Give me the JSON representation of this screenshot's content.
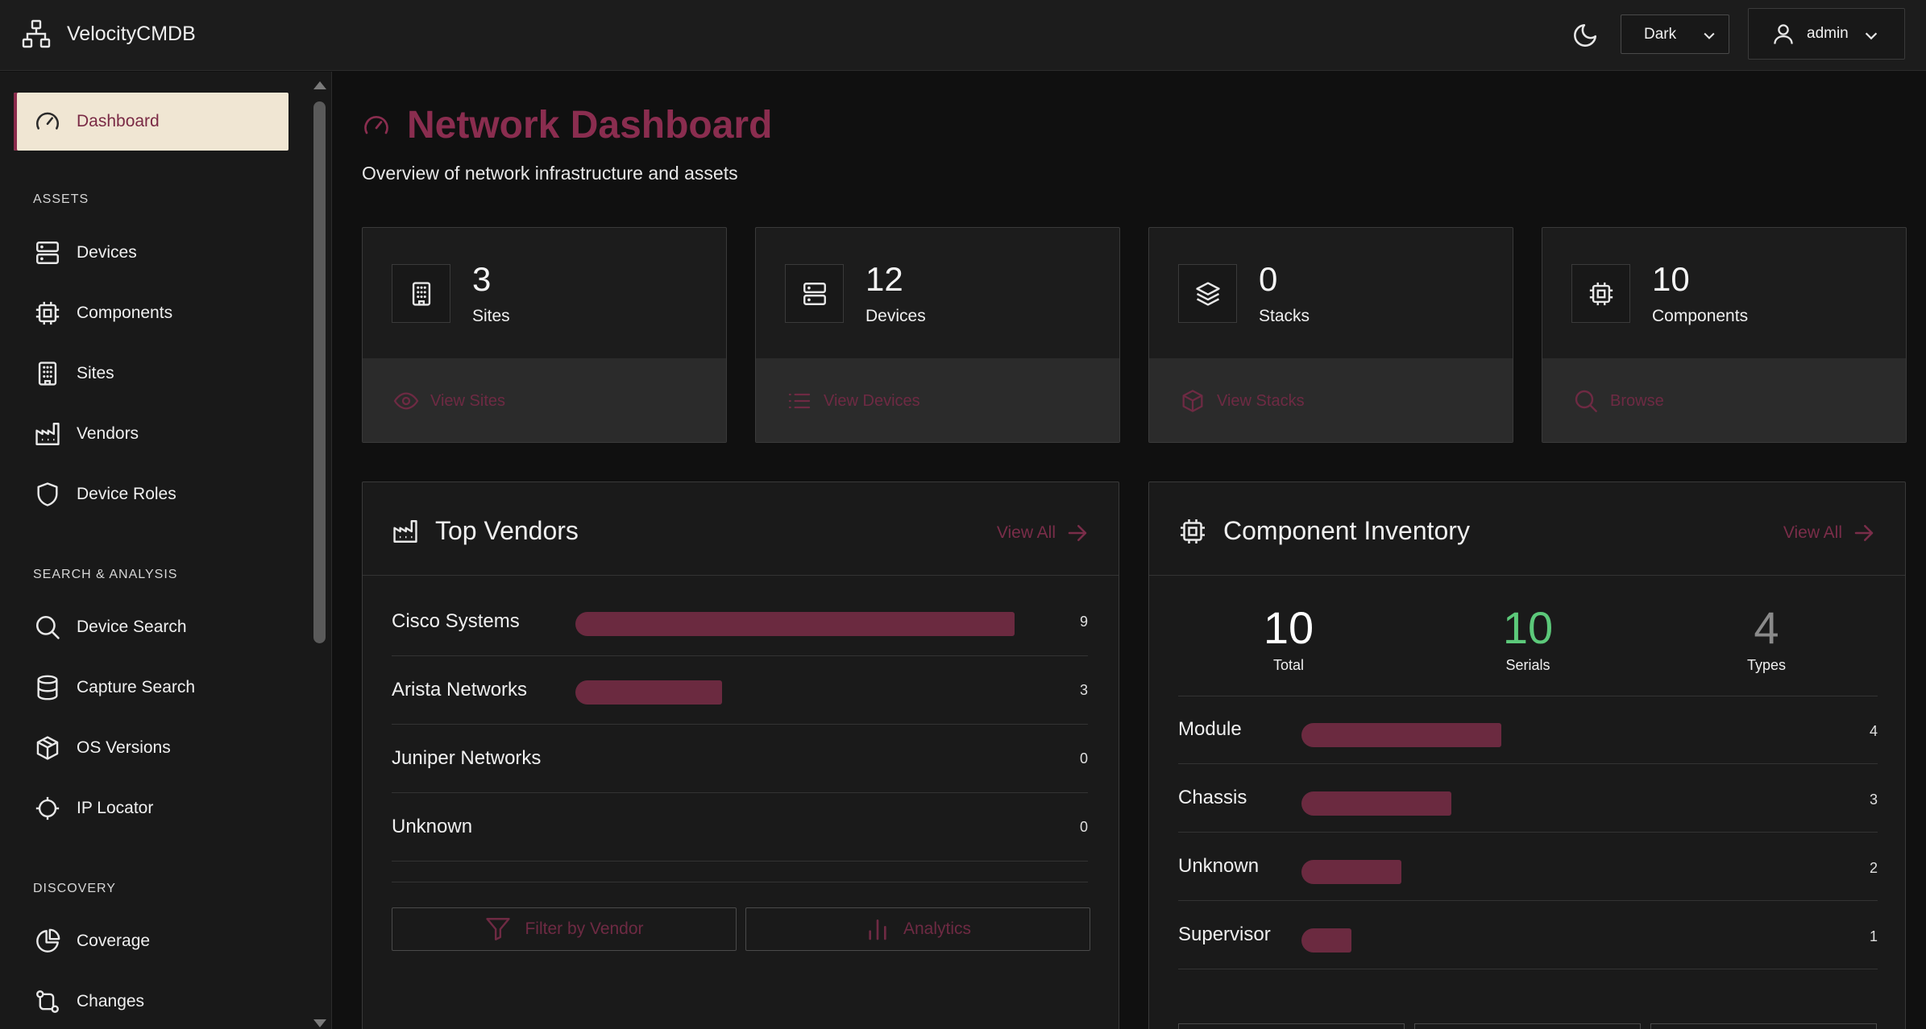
{
  "app": {
    "title": "VelocityCMDB"
  },
  "topbar": {
    "theme_value": "Dark",
    "theme_options": [
      "Dark"
    ],
    "username": "admin"
  },
  "sidebar": {
    "active": {
      "label": "Dashboard",
      "icon": "gauge-icon"
    },
    "sections": [
      {
        "label": "ASSETS",
        "items": [
          {
            "label": "Devices",
            "icon": "server-icon"
          },
          {
            "label": "Components",
            "icon": "cpu-icon"
          },
          {
            "label": "Sites",
            "icon": "building-icon"
          },
          {
            "label": "Vendors",
            "icon": "factory-icon"
          },
          {
            "label": "Device Roles",
            "icon": "shield-icon"
          }
        ]
      },
      {
        "label": "SEARCH & ANALYSIS",
        "items": [
          {
            "label": "Device Search",
            "icon": "search-icon"
          },
          {
            "label": "Capture Search",
            "icon": "database-icon"
          },
          {
            "label": "OS Versions",
            "icon": "box-icon"
          },
          {
            "label": "IP Locator",
            "icon": "crosshair-icon"
          }
        ]
      },
      {
        "label": "DISCOVERY",
        "items": [
          {
            "label": "Coverage",
            "icon": "pie-chart-icon"
          },
          {
            "label": "Changes",
            "icon": "git-compare-icon"
          }
        ]
      }
    ]
  },
  "page": {
    "title": "Network Dashboard",
    "subtitle": "Overview of network infrastructure and assets"
  },
  "stats": [
    {
      "value": "3",
      "label": "Sites",
      "link": "View Sites",
      "icon": "building-icon",
      "link_icon": "eye-icon"
    },
    {
      "value": "12",
      "label": "Devices",
      "link": "View Devices",
      "icon": "server-icon",
      "link_icon": "list-icon"
    },
    {
      "value": "0",
      "label": "Stacks",
      "link": "View Stacks",
      "icon": "layers-icon",
      "link_icon": "box-icon"
    },
    {
      "value": "10",
      "label": "Components",
      "link": "Browse",
      "icon": "cpu-icon",
      "link_icon": "search-icon"
    }
  ],
  "top_vendors": {
    "title": "Top Vendors",
    "view_all": "View All",
    "max": 9,
    "rows": [
      {
        "name": "Cisco Systems",
        "count": 9
      },
      {
        "name": "Arista Networks",
        "count": 3
      },
      {
        "name": "Juniper Networks",
        "count": 0
      },
      {
        "name": "Unknown",
        "count": 0
      }
    ],
    "buttons": {
      "filter": "Filter by Vendor",
      "analytics": "Analytics"
    }
  },
  "component_inventory": {
    "title": "Component Inventory",
    "view_all": "View All",
    "summary": [
      {
        "value": "10",
        "label": "Total",
        "color": "#ffffff"
      },
      {
        "value": "10",
        "label": "Serials",
        "color": "#5cc97a"
      },
      {
        "value": "4",
        "label": "Types",
        "color": "#8a8a8a"
      }
    ],
    "max": 10,
    "rows": [
      {
        "name": "Module",
        "count": 4
      },
      {
        "name": "Chassis",
        "count": 3
      },
      {
        "name": "Unknown",
        "count": 2
      },
      {
        "name": "Supervisor",
        "count": 1
      }
    ]
  },
  "colors": {
    "accent": "#8a2d4f",
    "bar": "#6b2a40",
    "active_bg": "#f0e6d3",
    "success": "#5cc97a"
  }
}
